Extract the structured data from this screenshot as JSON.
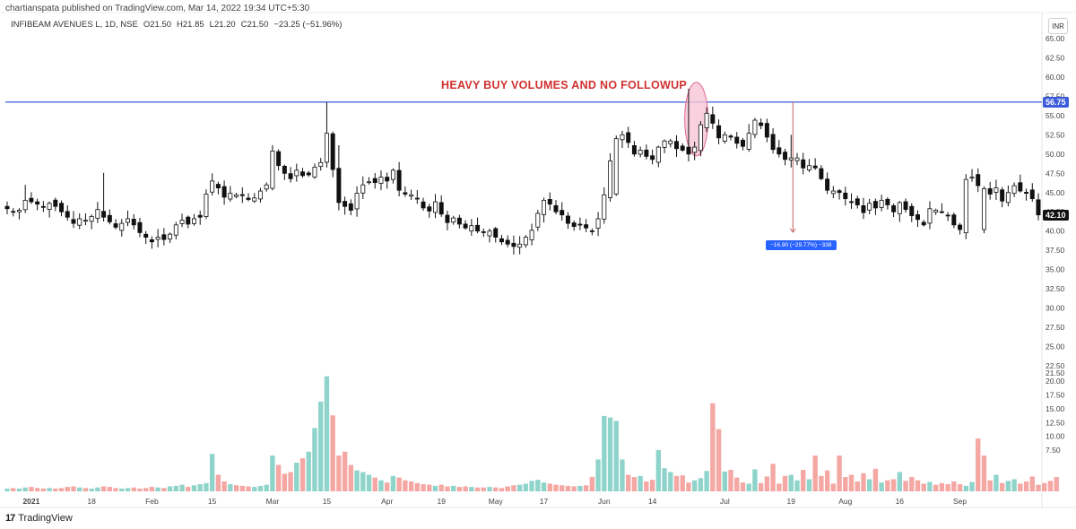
{
  "header": {
    "published_by": "chartianspata published on TradingView.com, Mar 14, 2022 19:34 UTC+5:30",
    "symbol": "INFIBEAM AVENUES L, 1D, NSE",
    "open": "O21.50",
    "high": "H21.85",
    "low": "L21.20",
    "close": "C21.50",
    "change": "−23.25 (−51.96%)"
  },
  "currency_label": "INR",
  "footer": {
    "logo_text": "TradingView",
    "logo_mark": "17"
  },
  "colors": {
    "up": "#26a69a",
    "down": "#ef5350",
    "volume_up": "#8fd4cb",
    "volume_down": "#f4a7a3",
    "resistance": "#3b5bdb",
    "annotation": "#d0302f",
    "ellipse_fill": "#f7c6d6",
    "ellipse_stroke": "#e0668e",
    "measure_line": "#c06060",
    "measure_label_bg": "#2962ff",
    "last_price_bg": "#111111"
  },
  "annotations": {
    "title": "HEAVY BUY VOLUMES AND NO FOLLOWUP",
    "measure_label": "−16.90 (−29.77%) −338",
    "resistance_label": "56.75",
    "last_price_label": "42.10"
  },
  "chart_data": {
    "type": "candlestick",
    "symbol": "INFIBEAM AVENUES L",
    "interval": "1D",
    "exchange": "NSE",
    "price_range": [
      20.0,
      67.5
    ],
    "volume_range": [
      0,
      23
    ],
    "price_ticks": [
      "65.00",
      "62.50",
      "60.00",
      "57.50",
      "55.00",
      "52.50",
      "50.00",
      "47.50",
      "45.00",
      "42.50",
      "40.00",
      "37.50",
      "35.00",
      "32.50",
      "30.00",
      "27.50",
      "25.00",
      "22.50"
    ],
    "volume_ticks": [
      "21.50",
      "20.00",
      "17.50",
      "15.00",
      "12.50",
      "10.00",
      "7.50"
    ],
    "x_ticks": [
      {
        "label": "2021",
        "index": 4
      },
      {
        "label": "18",
        "index": 14
      },
      {
        "label": "Feb",
        "index": 24
      },
      {
        "label": "15",
        "index": 34
      },
      {
        "label": "Mar",
        "index": 44
      },
      {
        "label": "15",
        "index": 53
      },
      {
        "label": "Apr",
        "index": 63
      },
      {
        "label": "19",
        "index": 72
      },
      {
        "label": "May",
        "index": 81
      },
      {
        "label": "17",
        "index": 89
      },
      {
        "label": "Jun",
        "index": 99
      },
      {
        "label": "14",
        "index": 107
      },
      {
        "label": "Jul",
        "index": 119
      },
      {
        "label": "19",
        "index": 130
      },
      {
        "label": "Aug",
        "index": 139
      },
      {
        "label": "16",
        "index": 148
      },
      {
        "label": "Sep",
        "index": 158
      }
    ],
    "resistance_level": 56.75,
    "measure": {
      "from_index": 130,
      "from_price": 56.75,
      "to_price": 39.85,
      "label": "−16.90 (−29.77%) −338"
    },
    "highlight": {
      "index": 114,
      "price": 54.3
    },
    "closes": [
      42.9,
      42.5,
      42.7,
      44.0,
      43.8,
      43.5,
      43.1,
      43.6,
      43.2,
      42.5,
      41.8,
      41.0,
      41.6,
      41.4,
      41.9,
      42.8,
      41.8,
      41.2,
      40.5,
      41.0,
      41.6,
      40.8,
      39.8,
      39.2,
      38.6,
      39.2,
      38.9,
      39.6,
      40.8,
      41.4,
      40.9,
      41.6,
      41.8,
      44.8,
      46.5,
      45.6,
      44.4,
      44.9,
      44.7,
      44.6,
      44.1,
      44.3,
      45.2,
      46.0,
      50.4,
      48.5,
      47.5,
      46.8,
      47.9,
      47.2,
      47.3,
      48.3,
      48.9,
      52.7,
      48.0,
      43.7,
      43.2,
      42.7,
      44.9,
      46.0,
      46.4,
      46.3,
      47.0,
      46.5,
      47.9,
      45.3,
      44.8,
      44.7,
      44.2,
      43.0,
      42.6,
      43.8,
      42.2,
      41.1,
      41.7,
      40.9,
      40.4,
      40.7,
      40.0,
      39.8,
      40.0,
      39.2,
      38.6,
      38.3,
      38.0,
      38.3,
      39.2,
      40.1,
      42.3,
      44.0,
      43.5,
      42.5,
      42.1,
      41.0,
      40.6,
      40.8,
      40.4,
      40.0,
      41.6,
      44.7,
      49.1,
      52.0,
      52.5,
      51.5,
      50.0,
      50.5,
      49.7,
      49.3,
      50.9,
      51.7,
      51.7,
      50.7,
      50.5,
      50.0,
      50.9,
      53.8,
      55.3,
      54.0,
      52.1,
      52.5,
      52.2,
      51.4,
      51.0,
      52.7,
      54.4,
      53.7,
      52.2,
      50.6,
      50.0,
      49.3,
      49.5,
      49.5,
      48.2,
      48.5,
      48.2,
      46.8,
      45.3,
      45.2,
      45.0,
      44.2,
      43.8,
      43.4,
      42.4,
      43.6,
      43.0,
      44.0,
      43.4,
      42.5,
      43.7,
      42.8,
      42.0,
      41.5,
      40.8,
      42.9,
      42.7,
      42.5,
      42.0,
      40.8,
      40.2,
      46.7,
      47.0,
      45.9,
      45.5,
      44.8,
      45.6,
      43.9,
      45.0,
      45.9,
      45.2,
      44.9,
      44.2,
      42.1
    ],
    "volumes": [
      0.5,
      0.6,
      0.5,
      0.7,
      0.8,
      0.6,
      0.5,
      0.6,
      0.5,
      0.6,
      0.8,
      0.9,
      0.7,
      0.6,
      0.5,
      0.7,
      0.9,
      0.8,
      0.6,
      0.5,
      0.6,
      0.7,
      0.5,
      0.6,
      0.8,
      0.7,
      0.6,
      0.9,
      1.0,
      1.2,
      0.8,
      1.1,
      1.3,
      1.5,
      6.8,
      3.0,
      1.8,
      1.3,
      1.1,
      1.0,
      0.9,
      0.8,
      1.0,
      1.2,
      6.5,
      4.8,
      3.2,
      3.5,
      5.2,
      6.0,
      7.2,
      11.5,
      16.3,
      20.9,
      13.8,
      6.5,
      7.2,
      4.8,
      3.8,
      3.5,
      3.0,
      2.5,
      2.0,
      1.6,
      2.8,
      2.5,
      2.0,
      1.8,
      1.5,
      1.3,
      1.2,
      1.0,
      1.2,
      0.9,
      1.0,
      0.8,
      0.9,
      0.8,
      0.7,
      0.7,
      0.8,
      0.7,
      0.6,
      0.9,
      1.1,
      1.2,
      1.4,
      1.9,
      2.1,
      1.6,
      1.4,
      1.2,
      1.1,
      1.0,
      0.9,
      1.0,
      1.1,
      2.6,
      5.8,
      13.7,
      13.4,
      12.8,
      5.8,
      3.0,
      2.6,
      2.8,
      1.8,
      2.1,
      7.5,
      4.2,
      3.5,
      2.8,
      2.9,
      1.6,
      2.0,
      2.4,
      3.7,
      16.0,
      11.3,
      3.6,
      3.9,
      2.5,
      1.6,
      1.4,
      4.0,
      1.5,
      2.7,
      5.0,
      1.4,
      2.8,
      3.0,
      2.0,
      3.9,
      2.2,
      6.5,
      2.8,
      3.8,
      1.4,
      6.5,
      2.6,
      3.0,
      1.8,
      3.3,
      2.2,
      4.1,
      1.6,
      2.0,
      2.2,
      3.5,
      1.9,
      2.6,
      2.0,
      1.4,
      1.7,
      1.2,
      1.5,
      1.3,
      1.8,
      1.3,
      1.0,
      1.7,
      9.6,
      6.5,
      2.0,
      3.0,
      1.5,
      1.9,
      2.2,
      1.4,
      1.8,
      2.7,
      1.2,
      1.5,
      1.9,
      2.6
    ]
  }
}
